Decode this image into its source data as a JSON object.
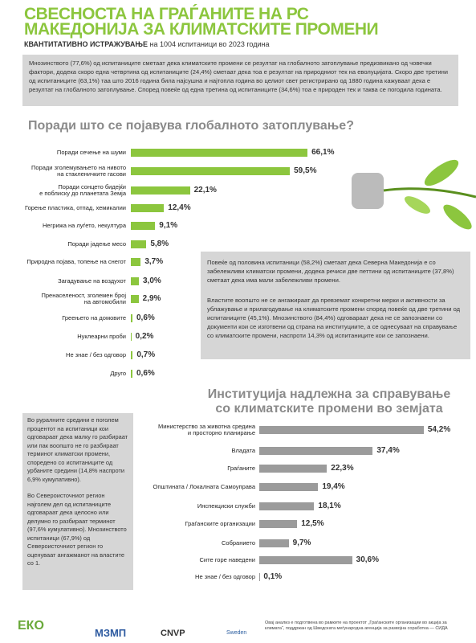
{
  "header": {
    "title_line1": "СВЕСНОСТА НА ГРАЃАНИТЕ НА РС",
    "title_line2": "МАКЕДОНИЈА ЗА КЛИМАТСКИТЕ ПРОМЕНИ",
    "subtitle_bold": "КВАНТИТАТИВНО ИСТРАЖУВАЊЕ",
    "subtitle_rest": "на 1004 испитаници во 2023 година"
  },
  "intro": "Мнозинството (77,6%) од испитаниците сметаат дека климатските промени се резултат на глобалното затоплување предизвикано од човечки фактори, додека скоро една четвртина од испитаниците (24,4%) сметаат дека тоа е резултат на природниот тек на еволуцијата. Скоро две третини од испитаниците (63,1%) таа што 2016 година била најсушна и најтопла година во целиот свет регистрирано од 1880 година кажуваат дека е резултат на глобалното затоплување. Според повеќе од една третина од испитаниците (34,6%) тоа е природен тек и таква се погодила годината.",
  "right_box": [
    "Повеќе од половина испитаници (58,2%) сметаат дека Северна Македонија е со забележливи климатски промени, додека речиси две петтини од испитаниците (37,8%) сметаат дека има мали забележливи промени.",
    "Властите воопшто не се ангажираат да превземат конкретни мерки и активности за ублажување и прилагодување на климатските промени според повеќе од две третини од испитаниците (45,1%). Мнозинството (84,4%) одговараат дека не се запознаени со документи кои се изготвени од страна на институциите, а се однесуваат на справување со климатските промени, наспроти 14,3% од испитаниците кои се запознаени."
  ],
  "left_box": [
    "Во руралните средини е поголем процентот на испитаници кои одговараат дека малку го разбираат или пак воопшто не го разбираат терминот климатски промени, споредено со испитаниците од урбаните средини (14,8% наспроти 6,9% кумулативно).",
    "Во Североисточниот регион најголем дел од испитаниците одговараат дека целосно или делумно го разбираат терминот (97,6% кумулативно). Мнозинството испитаници (67,9%) од Североисточниот регион го оценуваат ангажманот на властите со 1."
  ],
  "chart_data": [
    {
      "type": "bar",
      "title": "Поради што се појавува глобалното затоплување?",
      "color": "#8cc63e",
      "categories": [
        "Поради сечење на шуми",
        "Поради зголемувањето на нивото\nна стакленичките гасови",
        "Поради сонцето бидејќи\nе поблиску до планетата Земја",
        "Горење пластика, отпад, хемикалии",
        "Негрижа на луѓето, некултура",
        "Поради јадење месо",
        "Природна појава, топење на снегот",
        "Загадување на воздухот",
        "Пренаселеност, зголемен број\nна автомобили",
        "Греењето на домовите",
        "Нуклеарни проби",
        "Не знае / без одговор",
        "Друго"
      ],
      "values": [
        66.1,
        59.5,
        22.1,
        12.4,
        9.1,
        5.8,
        3.7,
        3.0,
        2.9,
        0.6,
        0.2,
        0.7,
        0.6
      ],
      "value_labels": [
        "66,1%",
        "59,5%",
        "22,1%",
        "12,4%",
        "9,1%",
        "5,8%",
        "3,7%",
        "3,0%",
        "2,9%",
        "0,6%",
        "0,2%",
        "0,7%",
        "0,6%"
      ]
    },
    {
      "type": "bar",
      "title": "Институција надлежна за справување\nсо климатските промени во земјата",
      "color": "#9b9b9b",
      "categories": [
        "Министерство за животна средина\nи просторно планирање",
        "Владата",
        "Граѓаните",
        "Општината / Локалната Самоуправа",
        "Инспекциски служби",
        "Граѓанските организации",
        "Собранието",
        "Сите горе наведени",
        "Не знае / без одговор"
      ],
      "values": [
        54.2,
        37.4,
        22.3,
        19.4,
        18.1,
        12.5,
        9.7,
        30.6,
        0.1
      ],
      "value_labels": [
        "54,2%",
        "37,4%",
        "22,3%",
        "19,4%",
        "18,1%",
        "12,5%",
        "9,7%",
        "30,6%",
        "0,1%"
      ]
    }
  ],
  "footer": {
    "logos": [
      "ЕКО",
      "МЗМП",
      "CNVP",
      "Sweden"
    ],
    "note": "Овај анализ е подготвена во рамките на проектот „Граѓанските организации во акција за климата“, поддржан од Шведската меѓународна агенција за развојна соработка — СИДА"
  }
}
